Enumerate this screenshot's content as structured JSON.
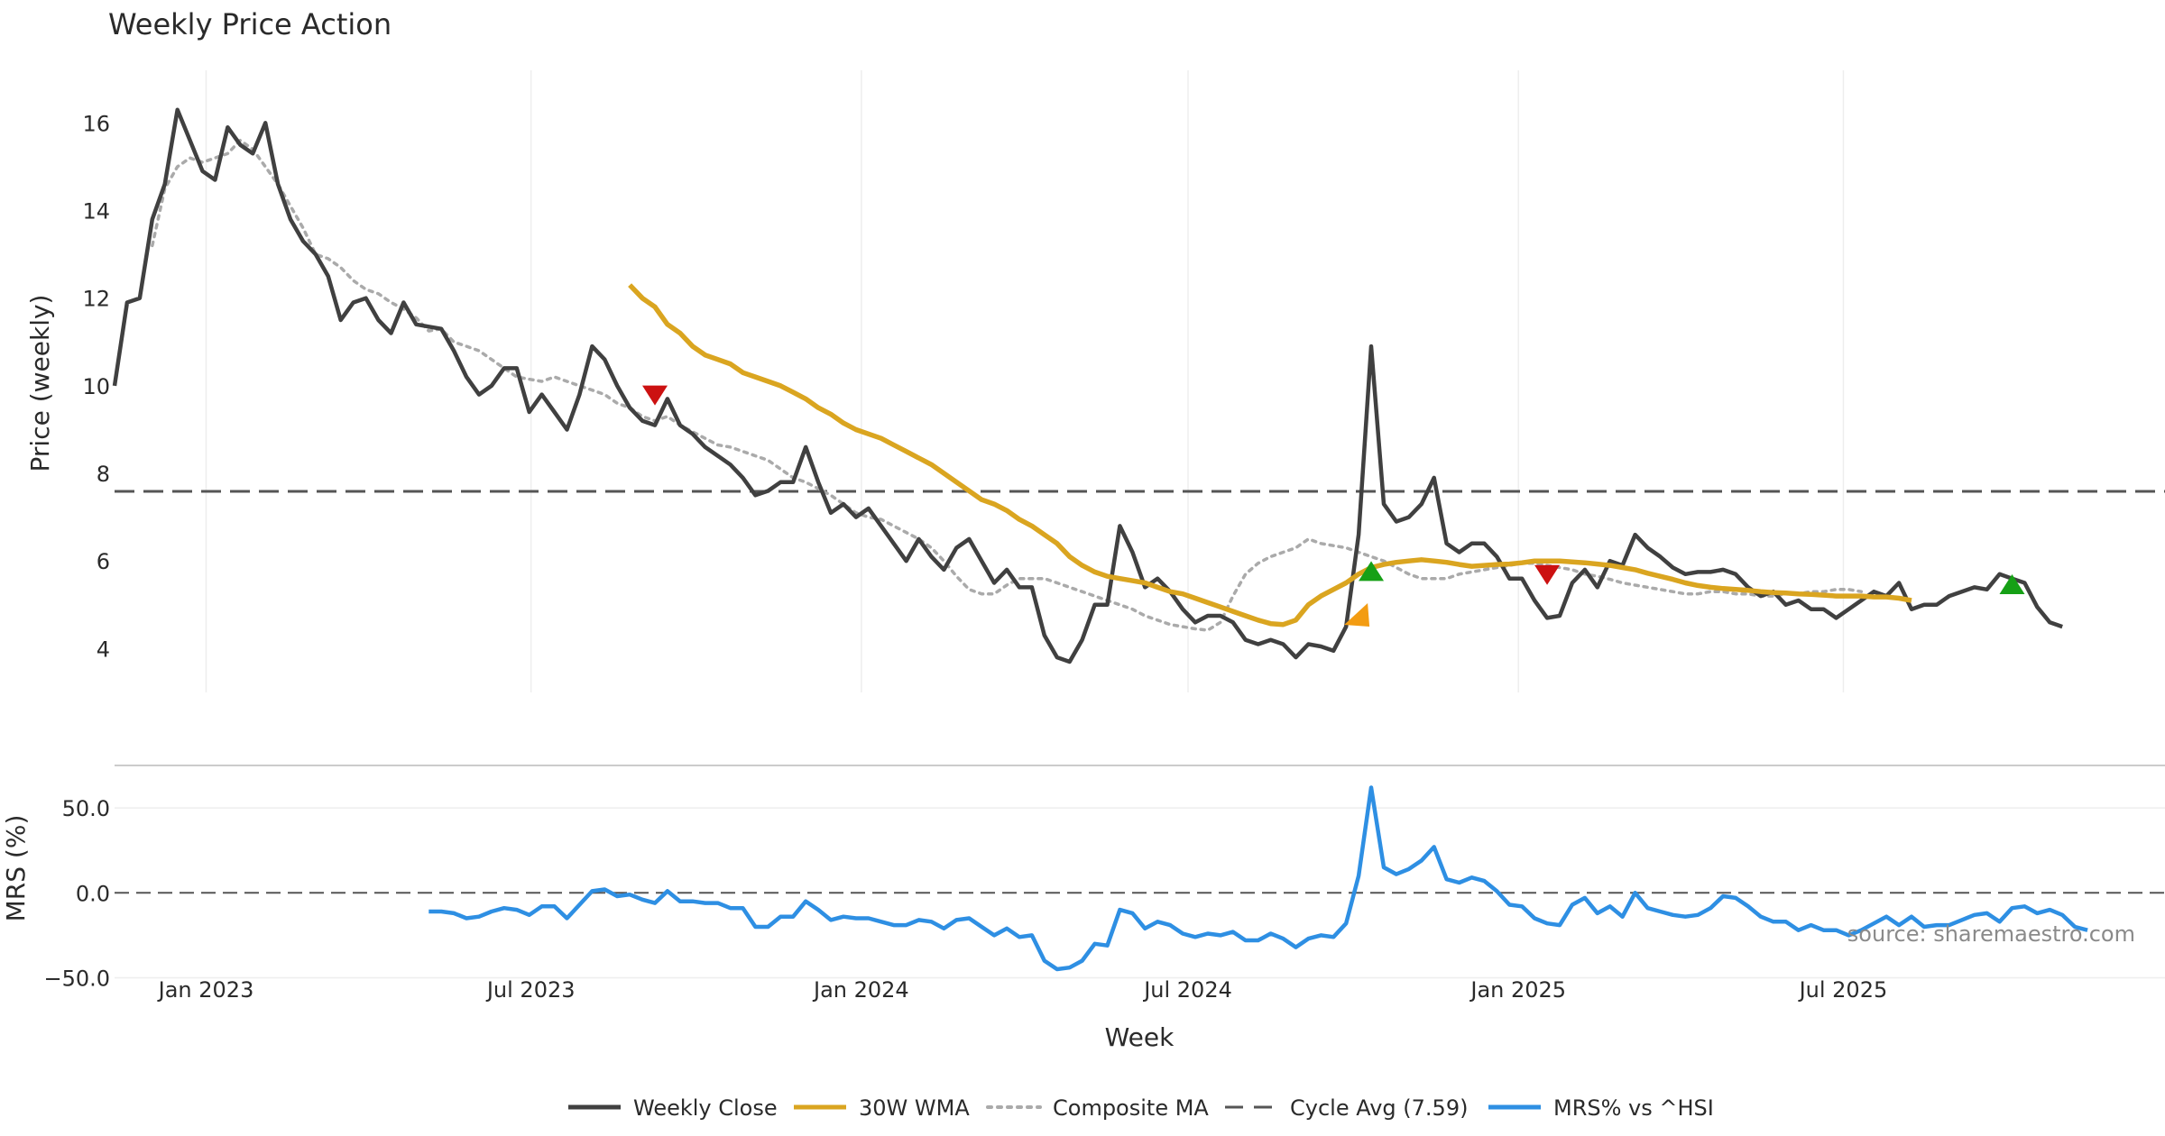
{
  "colors": {
    "close": "#404040",
    "wma": "#DAA520",
    "composite": "#aaaaaa",
    "cycle": "#555555",
    "mrs": "#2E8FE3",
    "buy": "#16a016",
    "sell": "#cc1111",
    "marker_orange": "#f39c12",
    "grid": "#eeeeee"
  },
  "chart_data": [
    {
      "type": "line",
      "title": "Weekly Price Action",
      "xlabel": "Week",
      "ylabel": "Price (weekly)",
      "x_start": "2022-11-11",
      "x_step_days": 7,
      "xlim": [
        "2022-11-11",
        "2025-11-21"
      ],
      "ylim": [
        3.0,
        17.2
      ],
      "yticks": [
        "4",
        "6",
        "8",
        "10",
        "12",
        "14",
        "16"
      ],
      "xticks": [
        {
          "label": "Jan 2023",
          "date": "2023-01-01"
        },
        {
          "label": "Jul 2023",
          "date": "2023-07-01"
        },
        {
          "label": "Jan 2024",
          "date": "2024-01-01"
        },
        {
          "label": "Jul 2024",
          "date": "2024-07-01"
        },
        {
          "label": "Jan 2025",
          "date": "2025-01-01"
        },
        {
          "label": "Jul 2025",
          "date": "2025-07-01"
        }
      ],
      "grid": true,
      "series": [
        {
          "name": "Weekly Close",
          "key": "close",
          "start_index": 0,
          "values": [
            10.0,
            11.9,
            12.0,
            13.8,
            14.6,
            16.3,
            15.6,
            14.9,
            14.7,
            15.9,
            15.5,
            15.3,
            16.0,
            14.6,
            13.8,
            13.3,
            13.0,
            12.5,
            11.5,
            11.9,
            12.0,
            11.5,
            11.2,
            11.9,
            11.4,
            11.35,
            11.3,
            10.8,
            10.2,
            9.8,
            10.0,
            10.4,
            10.4,
            9.4,
            9.8,
            9.4,
            9.0,
            9.8,
            10.9,
            10.6,
            10.0,
            9.5,
            9.2,
            9.1,
            9.7,
            9.1,
            8.9,
            8.6,
            8.4,
            8.2,
            7.9,
            7.5,
            7.6,
            7.8,
            7.8,
            8.6,
            7.8,
            7.1,
            7.3,
            7.0,
            7.2,
            6.8,
            6.4,
            6.0,
            6.5,
            6.1,
            5.8,
            6.3,
            6.5,
            6.0,
            5.5,
            5.8,
            5.4,
            5.4,
            4.3,
            3.8,
            3.7,
            4.2,
            5.0,
            5.0,
            6.8,
            6.2,
            5.4,
            5.6,
            5.3,
            4.9,
            4.6,
            4.75,
            4.75,
            4.6,
            4.2,
            4.1,
            4.2,
            4.1,
            3.8,
            4.1,
            4.05,
            3.95,
            4.5,
            6.6,
            10.9,
            7.3,
            6.9,
            7.0,
            7.3,
            7.9,
            6.4,
            6.2,
            6.4,
            6.4,
            6.1,
            5.6,
            5.6,
            5.1,
            4.7,
            4.75,
            5.5,
            5.8,
            5.4,
            6.0,
            5.9,
            6.6,
            6.3,
            6.1,
            5.85,
            5.7,
            5.75,
            5.75,
            5.8,
            5.7,
            5.4,
            5.2,
            5.3,
            5.0,
            5.1,
            4.9,
            4.9,
            4.7,
            4.9,
            5.1,
            5.3,
            5.2,
            5.5,
            4.9,
            5.0,
            5.0,
            5.2,
            5.3,
            5.4,
            5.35,
            5.7,
            5.6,
            5.5,
            4.95,
            4.6,
            4.5
          ]
        },
        {
          "name": "30W WMA",
          "key": "wma",
          "start_index": 41,
          "values": [
            12.3,
            12.0,
            11.8,
            11.4,
            11.2,
            10.9,
            10.7,
            10.6,
            10.5,
            10.3,
            10.2,
            10.1,
            10.0,
            9.85,
            9.7,
            9.5,
            9.35,
            9.15,
            9.0,
            8.9,
            8.8,
            8.65,
            8.5,
            8.35,
            8.2,
            8.0,
            7.8,
            7.6,
            7.4,
            7.3,
            7.15,
            6.95,
            6.8,
            6.6,
            6.4,
            6.1,
            5.9,
            5.75,
            5.65,
            5.6,
            5.55,
            5.5,
            5.4,
            5.3,
            5.25,
            5.15,
            5.05,
            4.95,
            4.85,
            4.75,
            4.65,
            4.57,
            4.55,
            4.65,
            5.0,
            5.2,
            5.35,
            5.5,
            5.7,
            5.85,
            5.92,
            5.97,
            6.0,
            6.03,
            6.0,
            5.97,
            5.92,
            5.88,
            5.9,
            5.92,
            5.93,
            5.96,
            6.0,
            6.0,
            6.0,
            5.98,
            5.96,
            5.93,
            5.9,
            5.85,
            5.8,
            5.72,
            5.65,
            5.58,
            5.5,
            5.44,
            5.4,
            5.37,
            5.35,
            5.33,
            5.3,
            5.28,
            5.27,
            5.25,
            5.24,
            5.22,
            5.2,
            5.2,
            5.2,
            5.18,
            5.18,
            5.15,
            5.1
          ]
        },
        {
          "name": "Composite MA",
          "key": "composite",
          "start_index": 3,
          "values": [
            13.2,
            14.5,
            15.0,
            15.2,
            15.1,
            15.2,
            15.3,
            15.6,
            15.4,
            15.0,
            14.6,
            14.1,
            13.6,
            13.0,
            12.9,
            12.7,
            12.4,
            12.2,
            12.1,
            11.9,
            11.75,
            11.55,
            11.25,
            11.3,
            11.0,
            10.9,
            10.8,
            10.6,
            10.4,
            10.2,
            10.15,
            10.1,
            10.2,
            10.1,
            10.0,
            9.9,
            9.8,
            9.6,
            9.5,
            9.3,
            9.2,
            9.3,
            9.1,
            8.95,
            8.8,
            8.65,
            8.6,
            8.5,
            8.4,
            8.3,
            8.1,
            7.9,
            7.8,
            7.65,
            7.5,
            7.3,
            7.1,
            7.0,
            6.95,
            6.8,
            6.65,
            6.5,
            6.3,
            6.0,
            5.65,
            5.35,
            5.25,
            5.25,
            5.45,
            5.6,
            5.6,
            5.6,
            5.5,
            5.4,
            5.3,
            5.2,
            5.1,
            5.0,
            4.9,
            4.75,
            4.65,
            4.55,
            4.5,
            4.45,
            4.42,
            4.6,
            5.2,
            5.7,
            5.95,
            6.1,
            6.2,
            6.3,
            6.5,
            6.4,
            6.35,
            6.3,
            6.2,
            6.1,
            6.0,
            5.85,
            5.7,
            5.6,
            5.6,
            5.6,
            5.7,
            5.75,
            5.8,
            5.85,
            5.9,
            5.95,
            5.95,
            5.9,
            5.85,
            5.8,
            5.7,
            5.65,
            5.58,
            5.5,
            5.45,
            5.4,
            5.35,
            5.3,
            5.25,
            5.25,
            5.3,
            5.3,
            5.25,
            5.25,
            5.2,
            5.2,
            5.25,
            5.25,
            5.3,
            5.3,
            5.35,
            5.35,
            5.3
          ]
        }
      ],
      "reference_lines": [
        {
          "name": "Cycle Avg (7.59)",
          "key": "cycle",
          "y": 7.59
        }
      ],
      "markers": [
        {
          "type": "sell",
          "x_index": 43,
          "y": 9.8
        },
        {
          "type": "buy",
          "x_index": 100,
          "y": 5.75
        },
        {
          "type": "entry",
          "x_index": 99,
          "y": 4.75
        },
        {
          "type": "sell",
          "x_index": 114,
          "y": 5.7
        },
        {
          "type": "buy",
          "x_index": 151,
          "y": 5.45
        }
      ]
    },
    {
      "type": "line",
      "ylabel": "MRS (%)",
      "ylim": [
        -54,
        75
      ],
      "yticks": [
        {
          "label": "50.0",
          "value": 50
        },
        {
          "label": "0.0",
          "value": 0
        },
        {
          "label": "−50.0",
          "value": -50
        }
      ],
      "series": [
        {
          "name": "MRS% vs ^HSI",
          "key": "mrs",
          "start_index": 25,
          "values": [
            -11,
            -11,
            -12,
            -15,
            -14,
            -11,
            -9,
            -10,
            -13,
            -8,
            -8,
            -15,
            -7,
            1,
            2,
            -2,
            -1,
            -4,
            -6,
            1,
            -5,
            -5,
            -6,
            -6,
            -9,
            -9,
            -20,
            -20,
            -14,
            -14,
            -5,
            -10,
            -16,
            -14,
            -15,
            -15,
            -17,
            -19,
            -19,
            -16,
            -17,
            -21,
            -16,
            -15,
            -20,
            -25,
            -21,
            -26,
            -25,
            -40,
            -45,
            -44,
            -40,
            -30,
            -31,
            -10,
            -12,
            -21,
            -17,
            -19,
            -24,
            -26,
            -24,
            -25,
            -23,
            -28,
            -28,
            -24,
            -27,
            -32,
            -27,
            -25,
            -26,
            -18,
            10,
            62,
            15,
            11,
            14,
            19,
            27,
            8,
            6,
            9,
            7,
            1,
            -7,
            -8,
            -15,
            -18,
            -19,
            -7,
            -3,
            -12,
            -8,
            -14,
            0,
            -9,
            -11,
            -13,
            -14,
            -13,
            -9,
            -2,
            -3,
            -8,
            -14,
            -17,
            -17,
            -22,
            -19,
            -22,
            -22,
            -25,
            -22,
            -18,
            -14,
            -19,
            -14,
            -20,
            -19,
            -19,
            -16,
            -13,
            -12,
            -17,
            -9,
            -8,
            -12,
            -10,
            -13,
            -20,
            -22
          ]
        }
      ],
      "reference_lines": [
        {
          "y": 0,
          "style": "dashed"
        }
      ]
    }
  ],
  "source_note": "source: sharemaestro.com",
  "legend": {
    "placement": "bottom-center",
    "items": [
      {
        "label": "Weekly Close",
        "key": "close",
        "style": "solid"
      },
      {
        "label": "30W WMA",
        "key": "wma",
        "style": "solid"
      },
      {
        "label": "Composite MA",
        "key": "composite",
        "style": "dotted"
      },
      {
        "label": "Cycle Avg (7.59)",
        "key": "cycle",
        "style": "dashed"
      },
      {
        "label": "MRS% vs ^HSI",
        "key": "mrs",
        "style": "solid"
      }
    ]
  }
}
